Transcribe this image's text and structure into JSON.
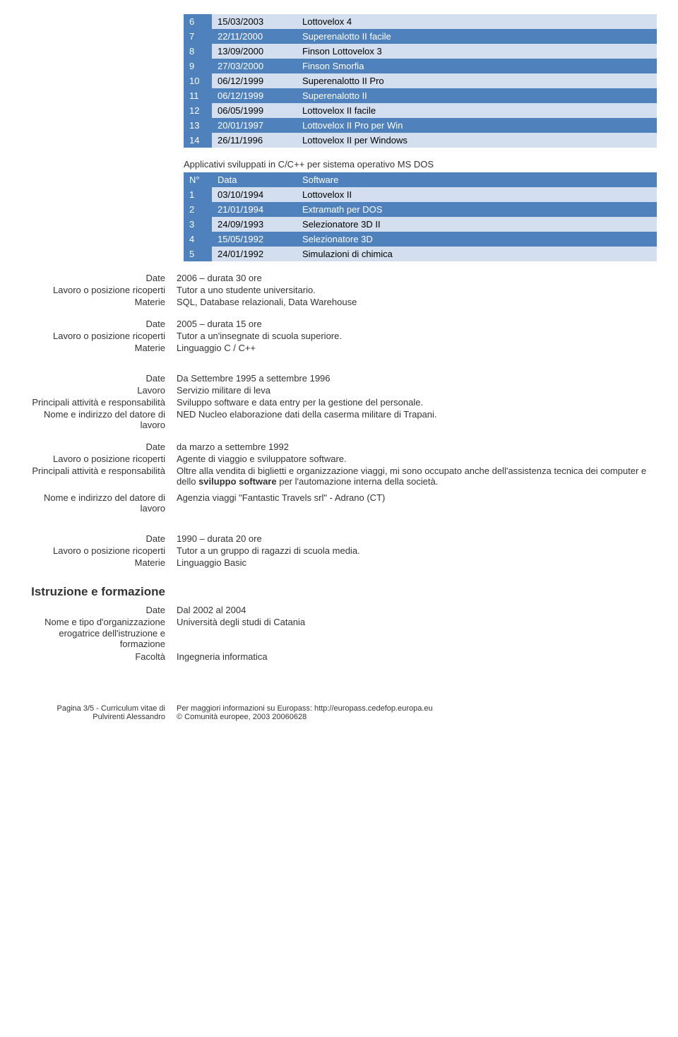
{
  "table1": {
    "rows": [
      {
        "n": "6",
        "date": "15/03/2003",
        "sw": "Lottovelox 4",
        "cls": "row-light"
      },
      {
        "n": "7",
        "date": "22/11/2000",
        "sw": "Superenalotto II facile",
        "cls": "row-dark"
      },
      {
        "n": "8",
        "date": "13/09/2000",
        "sw": "Finson Lottovelox 3",
        "cls": "row-light"
      },
      {
        "n": "9",
        "date": "27/03/2000",
        "sw": "Finson Smorfia",
        "cls": "row-dark"
      },
      {
        "n": "10",
        "date": "06/12/1999",
        "sw": "Superenalotto II Pro",
        "cls": "row-light"
      },
      {
        "n": "11",
        "date": "06/12/1999",
        "sw": "Superenalotto II",
        "cls": "row-dark"
      },
      {
        "n": "12",
        "date": "06/05/1999",
        "sw": "Lottovelox II facile",
        "cls": "row-light"
      },
      {
        "n": "13",
        "date": "20/01/1997",
        "sw": "Lottovelox II Pro per Win",
        "cls": "row-dark"
      },
      {
        "n": "14",
        "date": "26/11/1996",
        "sw": "Lottovelox II per Windows",
        "cls": "row-light"
      }
    ]
  },
  "table2": {
    "intro": "Applicativi sviluppati in C/C++ per sistema operativo MS DOS",
    "header": {
      "n": "N°",
      "date": "Data",
      "sw": "Software"
    },
    "rows": [
      {
        "n": "1",
        "date": "03/10/1994",
        "sw": "Lottovelox II",
        "cls": "row-light"
      },
      {
        "n": "2",
        "date": "21/01/1994",
        "sw": "Extramath per DOS",
        "cls": "row-dark"
      },
      {
        "n": "3",
        "date": "24/09/1993",
        "sw": "Selezionatore 3D II",
        "cls": "row-light"
      },
      {
        "n": "4",
        "date": "15/05/1992",
        "sw": "Selezionatore 3D",
        "cls": "row-dark"
      },
      {
        "n": "5",
        "date": "24/01/1992",
        "sw": "Simulazioni di chimica",
        "cls": "row-light"
      }
    ]
  },
  "labels": {
    "date": "Date",
    "lavoro_pos": "Lavoro o posizione ricoperti",
    "materie": "Materie",
    "lavoro": "Lavoro",
    "principali": "Principali attività e responsabilità",
    "datore": "Nome e indirizzo del datore di lavoro",
    "istruzione": "Istruzione e formazione",
    "org": "Nome e tipo d'organizzazione erogatrice dell'istruzione e formazione",
    "facolta": "Facoltà"
  },
  "exp1": {
    "date": "2006 – durata 30 ore",
    "pos": "Tutor a uno studente universitario.",
    "mat": "SQL, Database relazionali, Data Warehouse"
  },
  "exp2": {
    "date": "2005 – durata 15 ore",
    "pos": "Tutor a un'insegnate di scuola superiore.",
    "mat": "Linguaggio C / C++"
  },
  "exp3": {
    "date": "Da Settembre 1995 a settembre 1996",
    "lavoro": "Servizio militare di leva",
    "principali": "Sviluppo software e data entry per la gestione del personale.",
    "datore": "NED Nucleo elaborazione dati della caserma militare di Trapani."
  },
  "exp4": {
    "date": "da marzo a settembre 1992",
    "pos": "Agente di viaggio e sviluppatore software.",
    "principali_pre": "Oltre alla vendita di biglietti e organizzazione viaggi, mi sono occupato anche dell'assistenza tecnica dei computer e dello ",
    "principali_bold": "sviluppo software",
    "principali_post": " per l'automazione interna della società.",
    "datore": "Agenzia viaggi \"Fantastic Travels srl\" - Adrano (CT)"
  },
  "exp5": {
    "date": "1990 – durata 20 ore",
    "pos": "Tutor a un gruppo di ragazzi di scuola media.",
    "mat": "Linguaggio Basic"
  },
  "edu1": {
    "date": "Dal 2002 al 2004",
    "org": "Università degli studi di Catania",
    "fac": "Ingegneria informatica"
  },
  "footer": {
    "left1": "Pagina 3/5 - Curriculum vitae di",
    "left2": "Pulvirenti Alessandro",
    "right1": "Per maggiori informazioni su Europass: http://europass.cedefop.europa.eu",
    "right2": "© Comunità europee, 2003    20060628"
  }
}
